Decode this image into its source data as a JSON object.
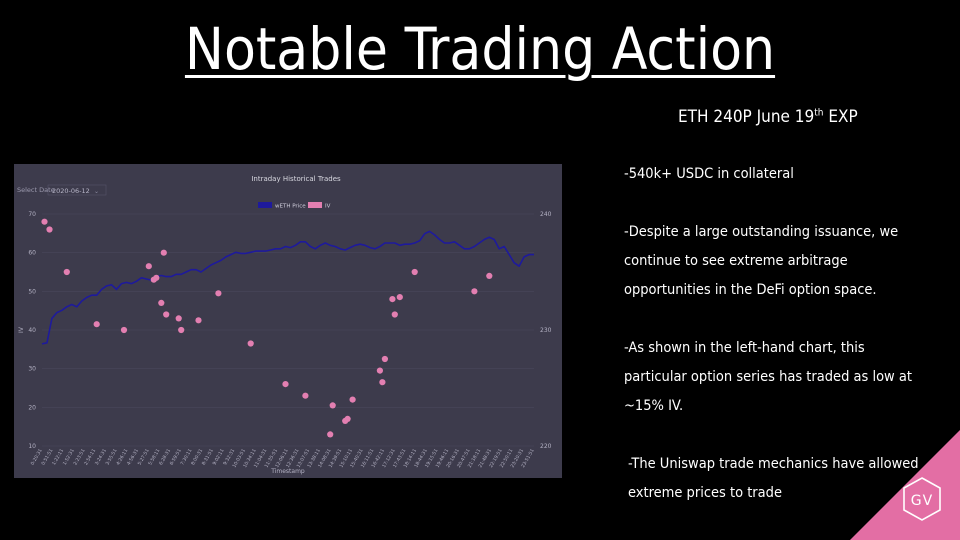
{
  "slide": {
    "title": "Notable Trading Action",
    "subtitle_main": "ETH 240P June 19",
    "subtitle_sup": "th",
    "subtitle_tail": " EXP",
    "bullets": [
      "-540k+ USDC in collateral",
      "-Despite a large outstanding issuance, we continue to see extreme arbitrage opportunities in the DeFi option space.",
      "-As shown in the left-hand chart, this particular option series has traded as low at ~15% IV.",
      "-The Uniswap trade mechanics have allowed extreme prices to trade"
    ],
    "logo_text": "GV",
    "accent_color": "#e36ea4"
  },
  "chart_data": {
    "type": "line",
    "title": "Intraday Historical Trades",
    "select_label": "Select Date",
    "select_value": "2020-06-12",
    "xlabel": "Timestamp",
    "ylabel": "IV",
    "ylim_left": [
      10,
      70
    ],
    "left_ticks": [
      10,
      20,
      30,
      40,
      50,
      60,
      70
    ],
    "ylim_right": [
      220,
      240
    ],
    "right_ticks": [
      220,
      230,
      240
    ],
    "grid": true,
    "legend_position": "top-center",
    "series": [
      {
        "name": "wETH Price",
        "axis": "right",
        "color": "#1e1a9c",
        "x": [
          0,
          1,
          2,
          3,
          4,
          5,
          6,
          7,
          8,
          9,
          10,
          11,
          12,
          13,
          14,
          15,
          16,
          17,
          18,
          19,
          20,
          21,
          22,
          23,
          24,
          25,
          26,
          27,
          28,
          29,
          30,
          31,
          32,
          33,
          34,
          35,
          36,
          37,
          38,
          39,
          40,
          41,
          42,
          43,
          44,
          45,
          46,
          47,
          48,
          49,
          50,
          51,
          52,
          53,
          54,
          55,
          56,
          57,
          58,
          59,
          60,
          61,
          62,
          63,
          64,
          65,
          66,
          67,
          68,
          69,
          70,
          71,
          72,
          73,
          74,
          75,
          76,
          77,
          78,
          79,
          80,
          81,
          82,
          83,
          84,
          85,
          86,
          87,
          88,
          89,
          90,
          91,
          92,
          93,
          94,
          95,
          96,
          97,
          98,
          99
        ],
        "values": [
          228.8,
          228.9,
          231.0,
          231.5,
          231.7,
          232.0,
          232.2,
          232.0,
          232.5,
          232.8,
          233.0,
          233.0,
          233.5,
          233.8,
          233.9,
          233.5,
          234.0,
          234.1,
          234.0,
          234.2,
          234.5,
          234.4,
          234.3,
          234.6,
          234.7,
          234.6,
          234.6,
          234.8,
          234.8,
          235.0,
          235.2,
          235.2,
          235.0,
          235.3,
          235.6,
          235.8,
          236.0,
          236.3,
          236.5,
          236.7,
          236.6,
          236.6,
          236.7,
          236.8,
          236.8,
          236.8,
          236.9,
          237.0,
          237.0,
          237.2,
          237.1,
          237.3,
          237.6,
          237.6,
          237.2,
          237.0,
          237.3,
          237.5,
          237.3,
          237.2,
          237.0,
          236.9,
          237.1,
          237.3,
          237.4,
          237.3,
          237.1,
          237.0,
          237.2,
          237.5,
          237.5,
          237.5,
          237.3,
          237.4,
          237.4,
          237.5,
          237.7,
          238.3,
          238.5,
          238.2,
          237.8,
          237.5,
          237.5,
          237.6,
          237.3,
          237.0,
          237.0,
          237.2,
          237.5,
          237.8,
          238.0,
          237.8,
          237.0,
          237.2,
          236.5,
          235.8,
          235.5,
          236.3,
          236.5,
          236.5
        ]
      },
      {
        "name": "IV",
        "axis": "left",
        "color": "#e37fb1",
        "points": [
          [
            0.5,
            68
          ],
          [
            1.5,
            66
          ],
          [
            5,
            55
          ],
          [
            11,
            41.5
          ],
          [
            16.5,
            40
          ],
          [
            21.5,
            56.5
          ],
          [
            22.5,
            53
          ],
          [
            23,
            53.5
          ],
          [
            24,
            47
          ],
          [
            24.5,
            60
          ],
          [
            25,
            44
          ],
          [
            27.5,
            43
          ],
          [
            28,
            40
          ],
          [
            31.5,
            42.5
          ],
          [
            35.5,
            49.5
          ],
          [
            42,
            36.5
          ],
          [
            49,
            26
          ],
          [
            53,
            23
          ],
          [
            58,
            13
          ],
          [
            58.5,
            20.5
          ],
          [
            61,
            16.5
          ],
          [
            61.5,
            17
          ],
          [
            62.5,
            22
          ],
          [
            68,
            29.5
          ],
          [
            68.5,
            26.5
          ],
          [
            69,
            32.5
          ],
          [
            70.5,
            48
          ],
          [
            71,
            44
          ],
          [
            72,
            48.5
          ],
          [
            75,
            55
          ],
          [
            87,
            50
          ],
          [
            90,
            54
          ]
        ]
      }
    ],
    "x_ticks": [
      "0:20:31",
      "0:51:51",
      "1:22:11",
      "1:52:31",
      "2:23:51",
      "2:54:11",
      "3:24:31",
      "3:55:51",
      "4:26:11",
      "4:56:31",
      "5:27:51",
      "5:58:11",
      "6:28:31",
      "6:59:51",
      "7:30:11",
      "8:00:31",
      "8:31:51",
      "9:02:11",
      "9:32:31",
      "10:03:51",
      "10:34:11",
      "11:04:31",
      "11:35:51",
      "12:06:11",
      "12:36:31",
      "13:07:51",
      "13:38:11",
      "14:08:31",
      "14:39:51",
      "15:10:11",
      "15:40:31",
      "16:11:51",
      "16:42:11",
      "17:12:31",
      "17:43:51",
      "18:14:11",
      "18:44:31",
      "19:15:51",
      "19:46:11",
      "20:16:31",
      "20:47:51",
      "21:18:11",
      "21:48:31",
      "22:19:51",
      "22:50:11",
      "23:20:31",
      "23:51:51"
    ]
  }
}
